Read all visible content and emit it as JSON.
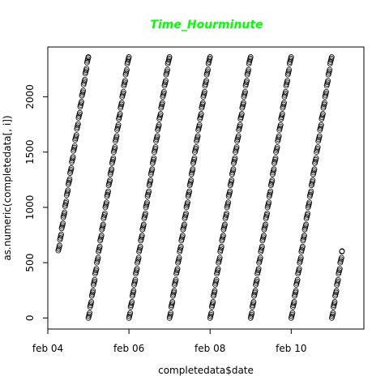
{
  "chart_data": {
    "type": "scatter",
    "title": "Time_Hourminute",
    "title_color": "#00ff00",
    "xlabel": "completedata$date",
    "ylabel": "as.numeric(completedata[, i])",
    "xticks": [
      {
        "date": "2018-02-04",
        "label": "feb 04"
      },
      {
        "date": "2018-02-06",
        "label": "feb 06"
      },
      {
        "date": "2018-02-08",
        "label": "feb 08"
      },
      {
        "date": "2018-02-10",
        "label": "feb 10"
      }
    ],
    "yticks": [
      0,
      500,
      1000,
      1500,
      2000
    ],
    "xlim": [
      "2018-02-04T00:00",
      "2018-02-11T19:00"
    ],
    "ylim": [
      -100,
      2450
    ],
    "marker": "open-circle",
    "marker_color": "#000000",
    "grid": false,
    "series": [
      {
        "points": [
          {
            "x": "2018-02-04T06:10",
            "y": 610
          },
          {
            "x": "2018-02-04T23:59",
            "y": 2359
          }
        ]
      },
      {
        "points": [
          {
            "x": "2018-02-05T00:00",
            "y": 0
          },
          {
            "x": "2018-02-05T23:59",
            "y": 2359
          }
        ]
      },
      {
        "points": [
          {
            "x": "2018-02-06T00:00",
            "y": 0
          },
          {
            "x": "2018-02-06T23:59",
            "y": 2359
          }
        ]
      },
      {
        "points": [
          {
            "x": "2018-02-07T00:00",
            "y": 0
          },
          {
            "x": "2018-02-07T23:59",
            "y": 2359
          }
        ]
      },
      {
        "points": [
          {
            "x": "2018-02-08T00:00",
            "y": 0
          },
          {
            "x": "2018-02-08T23:59",
            "y": 2359
          }
        ]
      },
      {
        "points": [
          {
            "x": "2018-02-09T00:00",
            "y": 0
          },
          {
            "x": "2018-02-09T23:59",
            "y": 2359
          }
        ]
      },
      {
        "points": [
          {
            "x": "2018-02-10T00:00",
            "y": 0
          },
          {
            "x": "2018-02-10T23:59",
            "y": 2359
          }
        ]
      },
      {
        "points": [
          {
            "x": "2018-02-11T00:00",
            "y": 0
          },
          {
            "x": "2018-02-11T06:05",
            "y": 605
          }
        ]
      }
    ]
  }
}
